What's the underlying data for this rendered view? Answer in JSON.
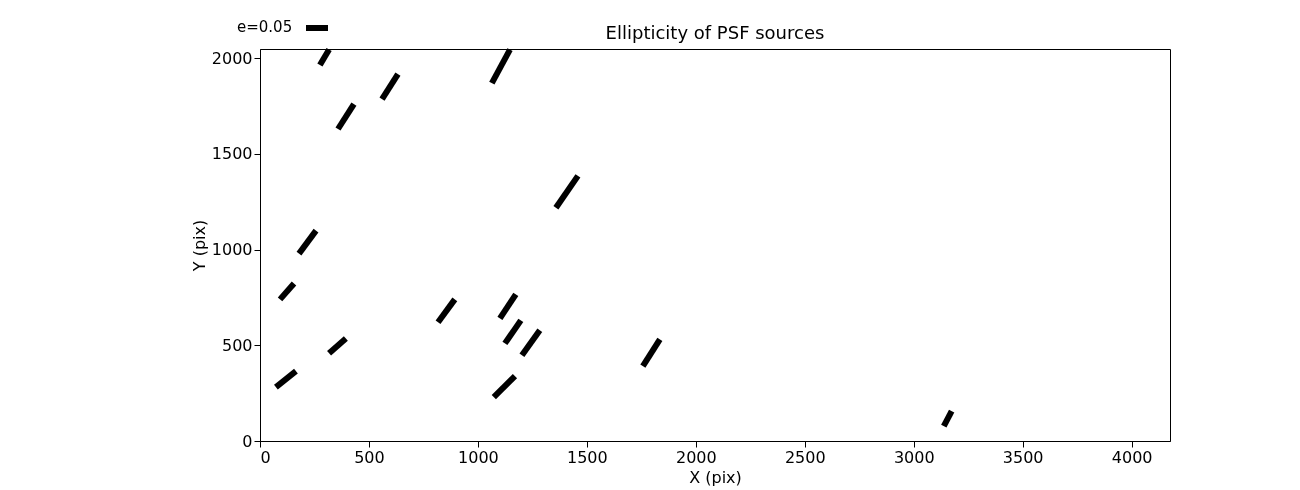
{
  "chart_data": {
    "type": "line",
    "title": "Ellipticity of PSF sources",
    "xlabel": "X (pix)",
    "ylabel": "Y (pix)",
    "xlim": [
      0,
      4176
    ],
    "ylim": [
      0,
      2048
    ],
    "xticks": [
      0,
      500,
      1000,
      1500,
      2000,
      2500,
      3000,
      3500,
      4000
    ],
    "yticks": [
      0,
      500,
      1000,
      1500,
      2000
    ],
    "grid": false,
    "legend": false,
    "line_style": "solid",
    "marker": "none",
    "annotations": [
      "e=0.05"
    ],
    "series": [
      {
        "color": "#000000",
        "x": [
          275,
          317
        ],
        "values": [
          1964,
          2045
        ]
      },
      {
        "color": "#000000",
        "x": [
          358,
          431
        ],
        "values": [
          1630,
          1760
        ]
      },
      {
        "color": "#000000",
        "x": [
          560,
          633
        ],
        "values": [
          1786,
          1917
        ]
      },
      {
        "color": "#000000",
        "x": [
          1064,
          1147
        ],
        "values": [
          1870,
          2045
        ]
      },
      {
        "color": "#000000",
        "x": [
          1358,
          1459
        ],
        "values": [
          1219,
          1385
        ]
      },
      {
        "color": "#000000",
        "x": [
          179,
          257
        ],
        "values": [
          979,
          1099
        ]
      },
      {
        "color": "#000000",
        "x": [
          92,
          156
        ],
        "values": [
          740,
          823
        ]
      },
      {
        "color": "#000000",
        "x": [
          73,
          165
        ],
        "values": [
          281,
          365
        ]
      },
      {
        "color": "#000000",
        "x": [
          317,
          394
        ],
        "values": [
          458,
          536
        ]
      },
      {
        "color": "#000000",
        "x": [
          817,
          894
        ],
        "values": [
          620,
          740
        ]
      },
      {
        "color": "#000000",
        "x": [
          1101,
          1174
        ],
        "values": [
          641,
          766
        ]
      },
      {
        "color": "#000000",
        "x": [
          1124,
          1197
        ],
        "values": [
          510,
          630
        ]
      },
      {
        "color": "#000000",
        "x": [
          1202,
          1284
        ],
        "values": [
          448,
          578
        ]
      },
      {
        "color": "#000000",
        "x": [
          1073,
          1170
        ],
        "values": [
          229,
          339
        ]
      },
      {
        "color": "#000000",
        "x": [
          1757,
          1835
        ],
        "values": [
          391,
          531
        ]
      },
      {
        "color": "#000000",
        "x": [
          3138,
          3174
        ],
        "values": [
          78,
          156
        ]
      }
    ]
  }
}
